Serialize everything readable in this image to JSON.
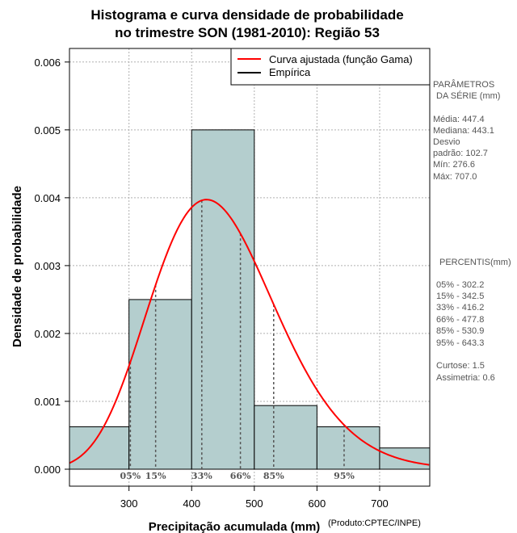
{
  "chart_data": {
    "type": "bar",
    "title": [
      "Histograma e curva densidade de probabilidade",
      "no trimestre SON (1981-2010): Região 53"
    ],
    "xlabel": "Precipitação acumulada (mm)",
    "ylabel": "Densidade de probabilidade",
    "credit": "(Produto:CPTEC/INPE)",
    "xlim": [
      205,
      780
    ],
    "ylim": [
      -0.00025,
      0.0062
    ],
    "xticks": [
      300,
      400,
      500,
      600,
      700
    ],
    "yticks": [
      "0.000",
      "0.001",
      "0.002",
      "0.003",
      "0.004",
      "0.005",
      "0.006"
    ],
    "bins": [
      {
        "x0": 200,
        "x1": 300,
        "density": 0.000625
      },
      {
        "x0": 300,
        "x1": 400,
        "density": 0.0025
      },
      {
        "x0": 400,
        "x1": 500,
        "density": 0.005
      },
      {
        "x0": 500,
        "x1": 600,
        "density": 0.000938
      },
      {
        "x0": 600,
        "x1": 700,
        "density": 0.000625
      },
      {
        "x0": 700,
        "x1": 800,
        "density": 0.000313
      }
    ],
    "gamma_fit": {
      "mean": 447.4,
      "sd": 102.7
    },
    "percentile_lines": [
      {
        "label": "05%",
        "value": 302.2
      },
      {
        "label": "15%",
        "value": 342.5
      },
      {
        "label": "33%",
        "value": 416.2
      },
      {
        "label": "66%",
        "value": 477.8
      },
      {
        "label": "85%",
        "value": 530.9
      },
      {
        "label": "95%",
        "value": 643.3
      }
    ],
    "legend": [
      {
        "label": "Curva ajustada (função Gama)",
        "color": "#ff0000"
      },
      {
        "label": "Empírica",
        "color": "#000000"
      }
    ],
    "colors": {
      "bar_fill": "#b4cece",
      "curve": "#ff0000",
      "grid": "#b0b0b0",
      "pct_line": "#555555"
    }
  },
  "side_panel": {
    "params_title": [
      "PARÂMETROS",
      "DA SÉRIE (mm)"
    ],
    "params": [
      "Média:  447.4",
      "Mediana:  443.1",
      "Desvio",
      "padrão:  102.7",
      "Mín:  276.6",
      "Máx:  707.0"
    ],
    "percentis_title": "PERCENTIS(mm)",
    "percentis": [
      "05% -   302.2",
      "15% -   342.5",
      "33% -   416.2",
      "66% -   477.8",
      "85% -   530.9",
      "95% -   643.3"
    ],
    "stats": [
      "Curtose:  1.5",
      "Assimetria:  0.6"
    ]
  }
}
